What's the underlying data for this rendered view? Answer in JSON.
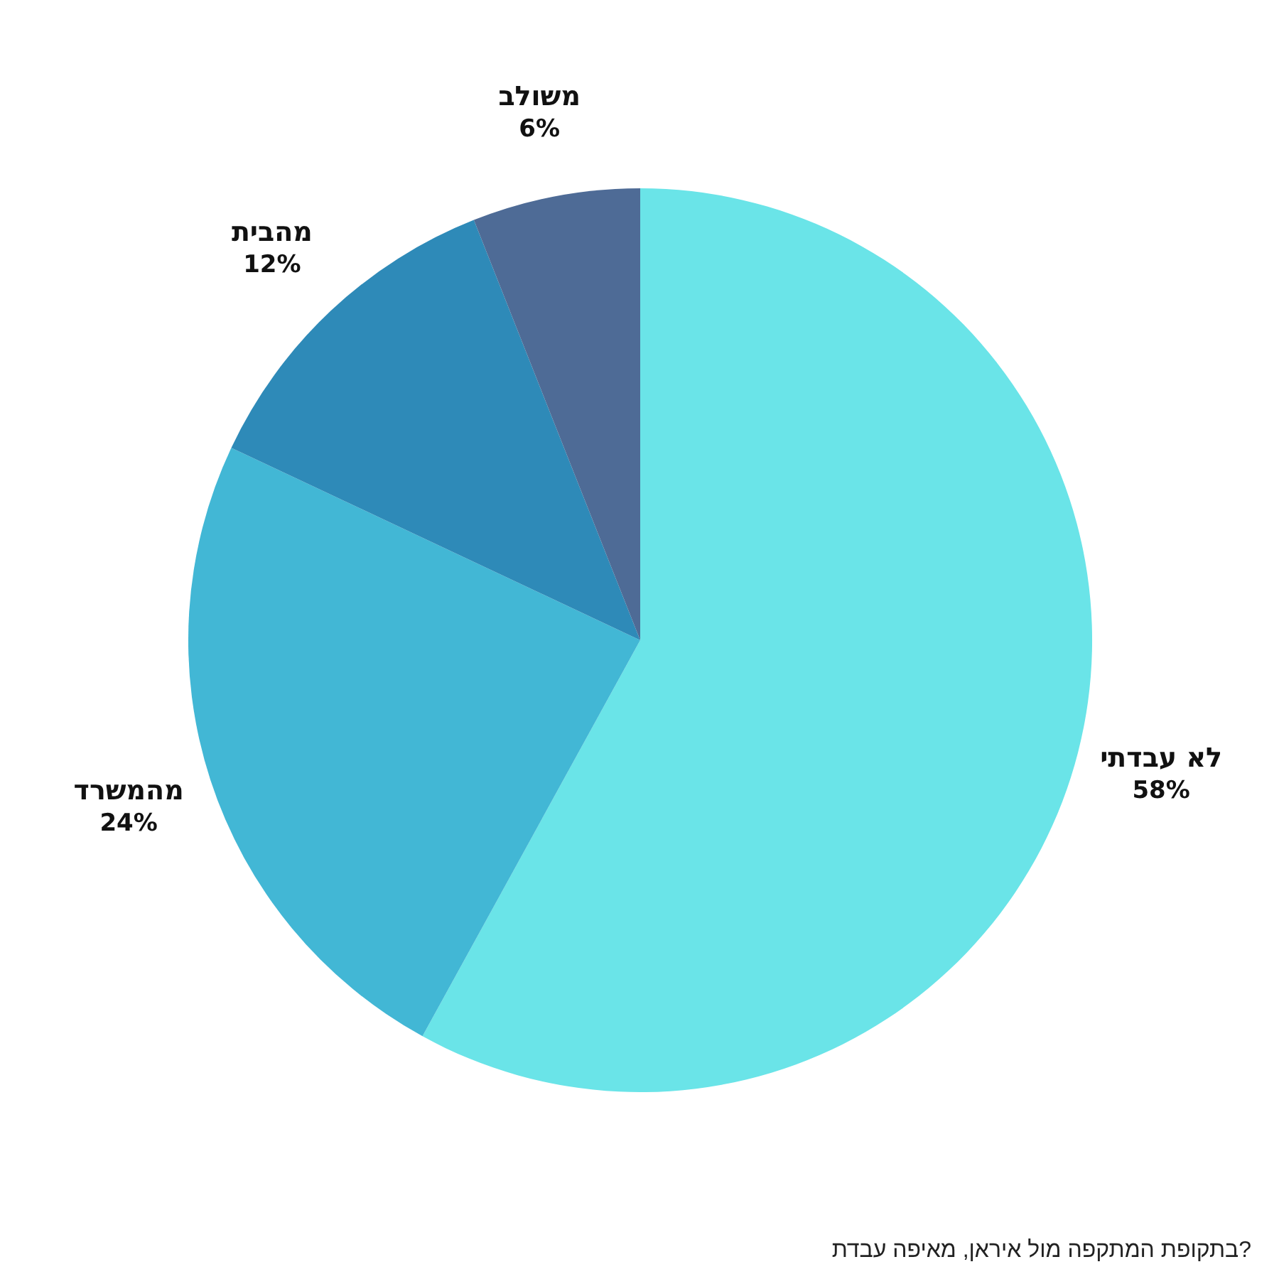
{
  "chart_data": {
    "type": "pie",
    "categories": [
      "לא עבדתי",
      "מהמשרד",
      "מהבית",
      "משולב"
    ],
    "values": [
      58,
      24,
      12,
      6
    ],
    "colors": [
      "#6ae4e8",
      "#42b7d5",
      "#2e8ab8",
      "#4e6b96"
    ],
    "value_labels": [
      "58%",
      "24%",
      "12%",
      "6%"
    ],
    "annotations": [
      "בתקופת המתקפה מול איראן, מאיפה עבדת?"
    ]
  }
}
